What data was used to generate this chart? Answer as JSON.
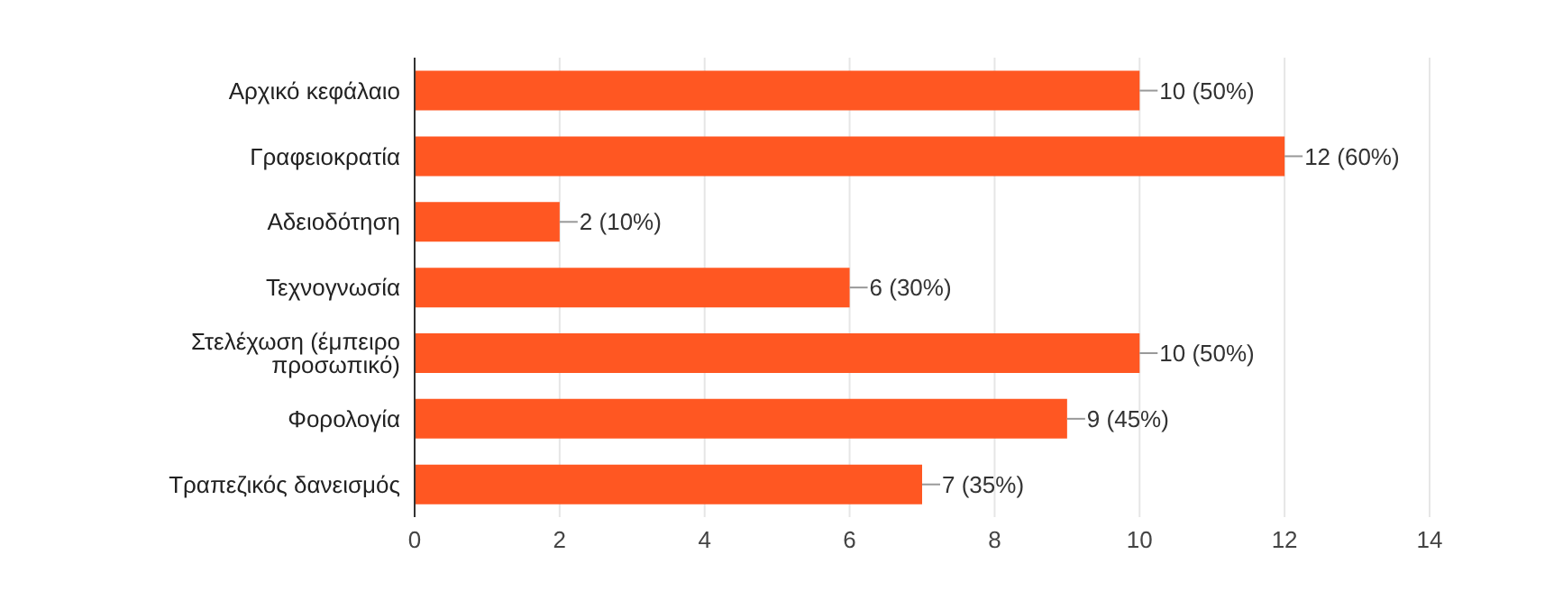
{
  "chart_data": {
    "type": "bar",
    "orientation": "horizontal",
    "categories": [
      "Αρχικό κεφάλαιο",
      "Γραφειοκρατία",
      "Αδειοδότηση",
      "Τεχνογνωσία",
      "Στελέχωση (έμπειρο προσωπικό)",
      "Φορολογία",
      "Τραπεζικός δανεισμός"
    ],
    "values": [
      10,
      12,
      2,
      6,
      10,
      9,
      7
    ],
    "value_labels": [
      "10 (50%)",
      "12 (60%)",
      "2 (10%)",
      "6 (30%)",
      "10 (50%)",
      "9 (45%)",
      "7 (35%)"
    ],
    "color": "#ff5722",
    "xlim": [
      0,
      14
    ],
    "xticks": [
      0,
      2,
      4,
      6,
      8,
      10,
      12,
      14
    ],
    "grid": "x"
  }
}
